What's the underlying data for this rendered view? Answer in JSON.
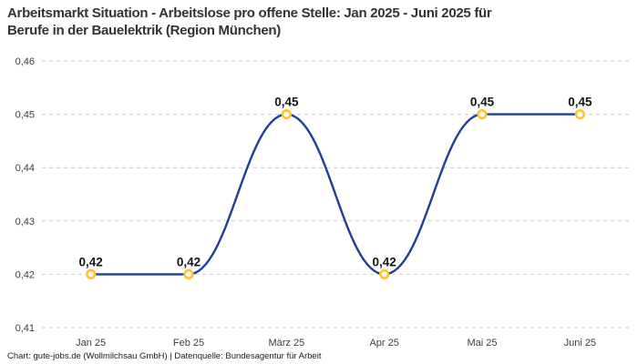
{
  "header": {
    "title_line1": "Arbeitsmarkt Situation - Arbeitslose pro offene Stelle: Jan 2025 - Juni 2025 für",
    "title_line2": "Berufe in der Bauelektrik (Region München)"
  },
  "footer": {
    "credit": "Chart: gute-jobs.de (Wollmilchsau GmbH) | Datenquelle: Bundesagentur für Arbeit"
  },
  "chart_data": {
    "type": "line",
    "title": "Arbeitsmarkt Situation - Arbeitslose pro offene Stelle: Jan 2025 - Juni 2025 für Berufe in der Bauelektrik (Region München)",
    "categories": [
      "Jan 25",
      "Feb 25",
      "März 25",
      "Apr 25",
      "Mai 25",
      "Juni 25"
    ],
    "values": [
      0.42,
      0.42,
      0.45,
      0.42,
      0.45,
      0.45
    ],
    "point_labels": [
      "0,42",
      "0,42",
      "0,45",
      "0,42",
      "0,45",
      "0,45"
    ],
    "y_ticks": [
      {
        "value": 0.41,
        "label": "0,41"
      },
      {
        "value": 0.42,
        "label": "0,42"
      },
      {
        "value": 0.43,
        "label": "0,43"
      },
      {
        "value": 0.44,
        "label": "0,44"
      },
      {
        "value": 0.45,
        "label": "0,45"
      },
      {
        "value": 0.46,
        "label": "0,46"
      }
    ],
    "ylim": [
      0.41,
      0.46
    ],
    "xlabel": "",
    "ylabel": "",
    "legend": "none",
    "grid": "horizontal-dashed",
    "line_interpolation": "monotone-smooth",
    "colors": {
      "line": "#1f3d99",
      "marker_stroke": "#ffc32d",
      "marker_fill": "#ffffff",
      "grid": "#c9c9c9",
      "tick_label": "#3d3d3d",
      "data_label": "#141414",
      "title": "#333333",
      "background": "#ffffff"
    }
  }
}
